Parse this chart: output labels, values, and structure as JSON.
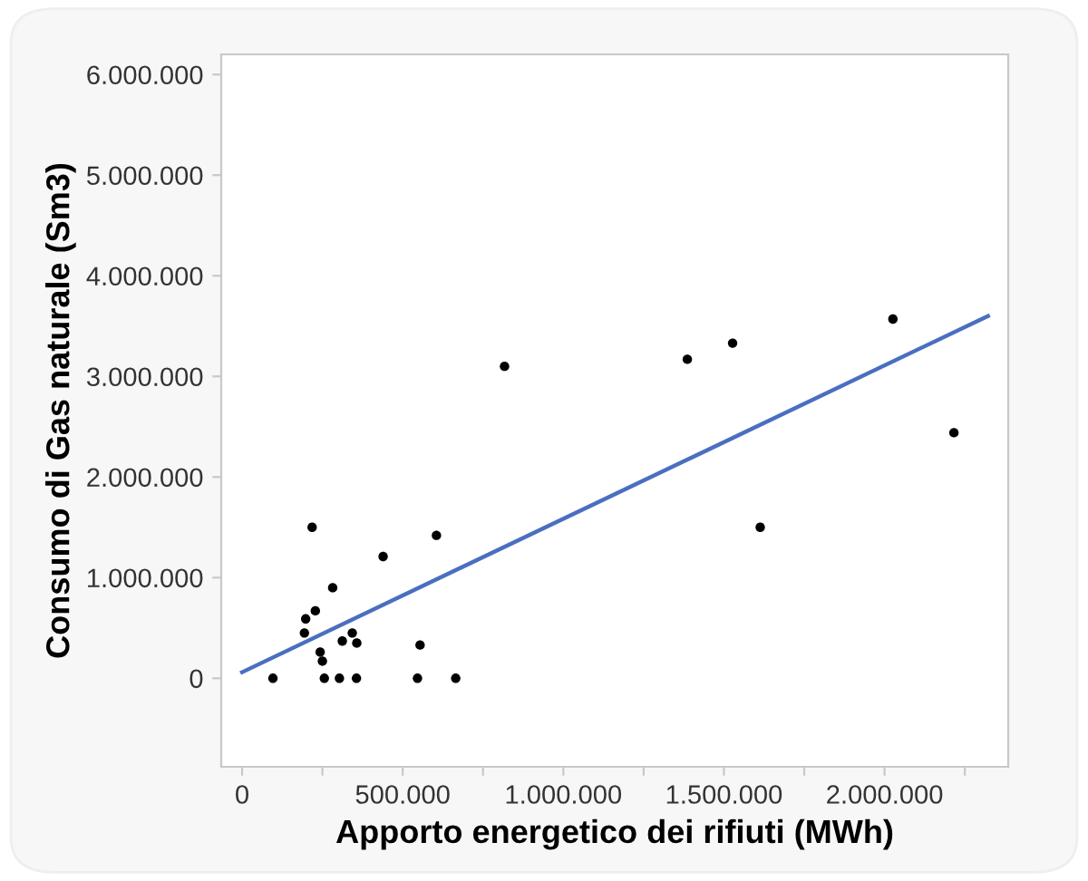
{
  "chart_data": {
    "type": "scatter",
    "xlabel": "Apporto energetico dei rifiuti (MWh)",
    "ylabel": "Consumo di Gas naturale (Sm3)",
    "xlim": [
      -65000,
      2385000
    ],
    "ylim": [
      -880000,
      6200000
    ],
    "xticks": [
      {
        "value": 0,
        "label": "0"
      },
      {
        "value": 250000,
        "label": null
      },
      {
        "value": 500000,
        "label": "500.000"
      },
      {
        "value": 750000,
        "label": null
      },
      {
        "value": 1000000,
        "label": "1.000.000"
      },
      {
        "value": 1250000,
        "label": null
      },
      {
        "value": 1500000,
        "label": "1.500.000"
      },
      {
        "value": 1750000,
        "label": null
      },
      {
        "value": 2000000,
        "label": "2.000.000"
      },
      {
        "value": 2250000,
        "label": null
      }
    ],
    "yticks": [
      {
        "value": 0,
        "label": "0"
      },
      {
        "value": 1000000,
        "label": "1.000.000"
      },
      {
        "value": 2000000,
        "label": "2.000.000"
      },
      {
        "value": 3000000,
        "label": "3.000.000"
      },
      {
        "value": 4000000,
        "label": "4.000.000"
      },
      {
        "value": 5000000,
        "label": "5.000.000"
      },
      {
        "value": 6000000,
        "label": "6.000.000"
      }
    ],
    "grid": false,
    "legend": false,
    "series": [
      {
        "color": "#000000",
        "marker": "circle",
        "x": [
          218000,
          605000,
          439000,
          282000,
          228000,
          198000,
          194000,
          343000,
          312000,
          357000,
          243000,
          250000,
          554000,
          96000,
          256000,
          303000,
          356000,
          546000,
          665000,
          817000,
          1386000,
          1527000,
          2026000,
          2216000,
          1613000
        ],
        "values": [
          1500000,
          1420000,
          1210000,
          900000,
          670000,
          590000,
          450000,
          450000,
          370000,
          350000,
          260000,
          170000,
          330000,
          0,
          0,
          0,
          0,
          0,
          0,
          3100000,
          3170000,
          3330000,
          3570000,
          2440000,
          1500000
        ]
      },
      {
        "type": "line",
        "color": "#4a6fc0",
        "marker": "none",
        "line_style": "solid",
        "x": [
          0,
          2322000
        ],
        "values": [
          60000,
          3600000
        ]
      }
    ]
  }
}
